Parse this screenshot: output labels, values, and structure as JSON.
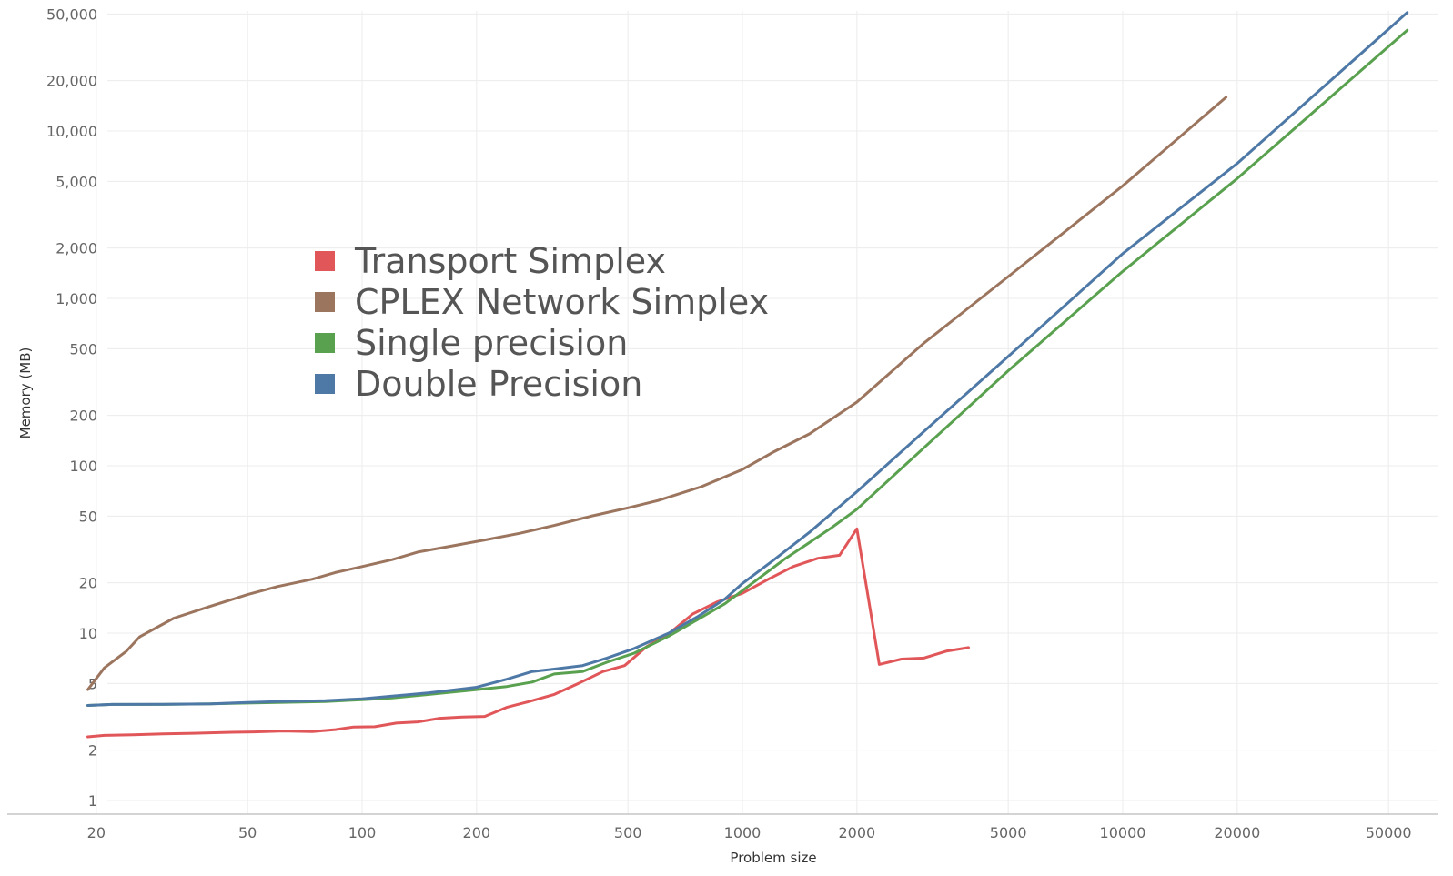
{
  "chart_data": {
    "type": "line",
    "title": "",
    "xlabel": "Problem size",
    "ylabel": "Memory (MB)",
    "x_scale": "log",
    "y_scale": "log",
    "xlim": [
      19,
      62000
    ],
    "ylim": [
      0.8,
      60000
    ],
    "grid": true,
    "legend_position": "upper-left, inside plot",
    "x_ticks": [
      {
        "value": 20,
        "label": "20"
      },
      {
        "value": 50,
        "label": "50"
      },
      {
        "value": 100,
        "label": "100"
      },
      {
        "value": 200,
        "label": "200"
      },
      {
        "value": 500,
        "label": "500"
      },
      {
        "value": 1000,
        "label": "1000"
      },
      {
        "value": 2000,
        "label": "2000"
      },
      {
        "value": 5000,
        "label": "5000"
      },
      {
        "value": 10000,
        "label": "10000"
      },
      {
        "value": 20000,
        "label": "20000"
      },
      {
        "value": 50000,
        "label": "50000"
      }
    ],
    "y_ticks": [
      {
        "value": 1,
        "label": "1"
      },
      {
        "value": 2,
        "label": "2"
      },
      {
        "value": 5,
        "label": "5"
      },
      {
        "value": 10,
        "label": "10"
      },
      {
        "value": 20,
        "label": "20"
      },
      {
        "value": 50,
        "label": "50"
      },
      {
        "value": 100,
        "label": "100"
      },
      {
        "value": 200,
        "label": "200"
      },
      {
        "value": 500,
        "label": "500"
      },
      {
        "value": 1000,
        "label": "1,000"
      },
      {
        "value": 2000,
        "label": "2,000"
      },
      {
        "value": 5000,
        "label": "5,000"
      },
      {
        "value": 10000,
        "label": "10,000"
      },
      {
        "value": 20000,
        "label": "20,000"
      },
      {
        "value": 50000,
        "label": "50,000"
      }
    ],
    "series": [
      {
        "name": "Transport Simplex",
        "color": "#e15759",
        "x": [
          19,
          21,
          25,
          30,
          36,
          43,
          52,
          62,
          74,
          85,
          95,
          108,
          123,
          140,
          160,
          183,
          210,
          240,
          275,
          320,
          370,
          430,
          490,
          560,
          640,
          740,
          860,
          1000,
          1170,
          1360,
          1580,
          1800,
          2000,
          2290,
          2620,
          3000,
          3430,
          3930
        ],
        "y": [
          2.4,
          2.45,
          2.47,
          2.5,
          2.52,
          2.55,
          2.57,
          2.6,
          2.58,
          2.65,
          2.75,
          2.76,
          2.9,
          2.95,
          3.1,
          3.15,
          3.18,
          3.6,
          3.9,
          4.3,
          5.0,
          5.9,
          6.4,
          8.3,
          9.9,
          13.0,
          15.4,
          17.3,
          21.0,
          25.0,
          28.0,
          29.2,
          42.0,
          6.5,
          7.0,
          7.1,
          7.8,
          8.2
        ]
      },
      {
        "name": "CPLEX Network Simplex",
        "color": "#9c755f",
        "x": [
          19,
          21,
          24,
          26,
          32,
          40,
          50,
          60,
          74,
          85,
          100,
          120,
          140,
          170,
          210,
          260,
          320,
          400,
          500,
          600,
          780,
          1000,
          1200,
          1500,
          2000,
          3000,
          5000,
          10000,
          18700
        ],
        "y": [
          4.6,
          6.2,
          7.8,
          9.5,
          12.3,
          14.5,
          17.0,
          19.0,
          21.0,
          23.0,
          25.0,
          27.5,
          30.5,
          33.0,
          36.0,
          39.5,
          44.0,
          50.0,
          56.0,
          62.0,
          75.0,
          95.0,
          120.0,
          155.0,
          240.0,
          540.0,
          1350.0,
          4700.0,
          15900.0
        ]
      },
      {
        "name": "Single precision",
        "color": "#59a14f",
        "x": [
          19,
          22,
          30,
          40,
          50,
          60,
          80,
          100,
          120,
          150,
          200,
          240,
          280,
          320,
          380,
          440,
          520,
          640,
          760,
          900,
          1050,
          1300,
          1700,
          2000,
          3000,
          5000,
          10000,
          20000,
          56000
        ],
        "y": [
          3.7,
          3.75,
          3.75,
          3.78,
          3.82,
          3.85,
          3.9,
          4.0,
          4.1,
          4.3,
          4.6,
          4.8,
          5.1,
          5.7,
          5.9,
          6.7,
          7.6,
          9.6,
          12.0,
          15.0,
          19.5,
          28.0,
          42.0,
          55.0,
          128.0,
          370.0,
          1450.0,
          5200.0,
          40000.0
        ]
      },
      {
        "name": "Double Precision",
        "color": "#4e79a7",
        "x": [
          19,
          22,
          30,
          40,
          50,
          60,
          80,
          100,
          120,
          150,
          200,
          240,
          280,
          320,
          380,
          440,
          520,
          640,
          760,
          900,
          1000,
          1200,
          1500,
          2000,
          3000,
          5000,
          10000,
          20000,
          56000
        ],
        "y": [
          3.7,
          3.75,
          3.76,
          3.78,
          3.85,
          3.9,
          3.95,
          4.05,
          4.2,
          4.4,
          4.75,
          5.3,
          5.9,
          6.1,
          6.4,
          7.1,
          8.1,
          10.0,
          12.5,
          16.0,
          19.8,
          27.0,
          40.0,
          70.0,
          160.0,
          450.0,
          1850.0,
          6400.0,
          51000.0
        ]
      }
    ]
  }
}
